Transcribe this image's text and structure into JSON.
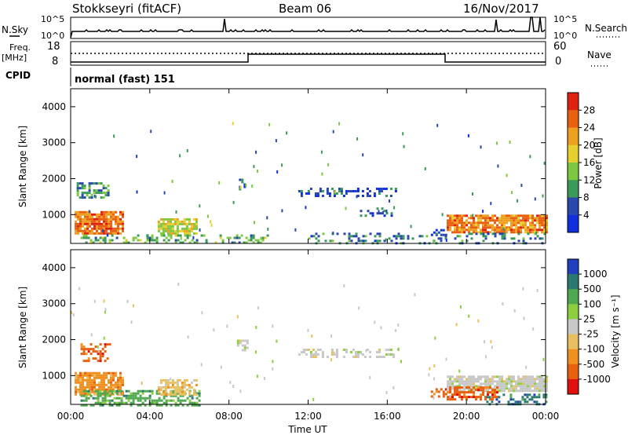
{
  "header": {
    "station": "Stokkseyri (fitACF)",
    "beam": "Beam 06",
    "date": "16/Nov/2017"
  },
  "noise_panel": {
    "left_label": "N.Sky",
    "right_label": "N.Search",
    "tick_top_left": "10^5",
    "tick_bottom_left": "10^0",
    "tick_top_right": "10^5",
    "tick_bottom_right": "10^0"
  },
  "freq_panel": {
    "left_label_1": "Freq.",
    "left_label_2": "[MHz]",
    "right_label": "Nave",
    "tick_top_left": "18",
    "tick_bottom_left": "8",
    "tick_top_right": "60",
    "tick_bottom_right": "0"
  },
  "cpid_panel": {
    "label": "CPID",
    "mode_text": "normal (fast) 151"
  },
  "colors": {
    "power_scale": [
      "#1030e0",
      "#2848b0",
      "#3a9a5a",
      "#7cc840",
      "#e6d030",
      "#f0a020",
      "#e86010",
      "#e02010"
    ],
    "velocity_scale": [
      "#e01010",
      "#e86010",
      "#f09020",
      "#e8c060",
      "#c8c8c8",
      "#8cd040",
      "#50a850",
      "#2a7a70",
      "#2040c0"
    ]
  },
  "chart_data": [
    {
      "type": "heatmap",
      "name": "power",
      "xlabel": "",
      "ylabel": "Slant Range [km]",
      "yticks": [
        "1000",
        "2000",
        "3000",
        "4000"
      ],
      "ylim": [
        200,
        4500
      ],
      "xlim_hours": [
        0,
        24
      ],
      "colorbar": {
        "label": "Power [dB]",
        "ticks": [
          "4",
          "8",
          "12",
          "16",
          "20",
          "24",
          "28"
        ],
        "range": [
          0,
          32
        ]
      },
      "blobs": [
        {
          "t0": 0.2,
          "t1": 2.6,
          "r0": 450,
          "r1": 1100,
          "level": 25,
          "density": 0.85
        },
        {
          "t0": 0.3,
          "t1": 1.9,
          "r0": 1450,
          "r1": 1900,
          "level": 10,
          "density": 0.45
        },
        {
          "t0": 4.4,
          "t1": 6.4,
          "r0": 500,
          "r1": 900,
          "level": 18,
          "density": 0.7
        },
        {
          "t0": 0.5,
          "t1": 10.0,
          "r0": 200,
          "r1": 450,
          "level": 12,
          "density": 0.35
        },
        {
          "t0": 8.5,
          "t1": 8.8,
          "r0": 1700,
          "r1": 2000,
          "level": 6,
          "density": 0.5
        },
        {
          "t0": 11.5,
          "t1": 16.5,
          "r0": 1550,
          "r1": 1750,
          "level": 5,
          "density": 0.35
        },
        {
          "t0": 14.5,
          "t1": 16.2,
          "r0": 1000,
          "r1": 1200,
          "level": 6,
          "density": 0.3
        },
        {
          "t0": 18.2,
          "t1": 19.0,
          "r0": 450,
          "r1": 600,
          "level": 3,
          "density": 0.5
        },
        {
          "t0": 19.0,
          "t1": 24.0,
          "r0": 500,
          "r1": 1000,
          "level": 24,
          "density": 0.85
        },
        {
          "t0": 12.0,
          "t1": 24.0,
          "r0": 200,
          "r1": 500,
          "level": 8,
          "density": 0.25
        }
      ]
    },
    {
      "type": "heatmap",
      "name": "velocity",
      "xlabel": "Time UT",
      "ylabel": "Slant Range [km]",
      "yticks": [
        "1000",
        "2000",
        "3000",
        "4000"
      ],
      "ylim": [
        200,
        4500
      ],
      "xticks": [
        "00:00",
        "04:00",
        "08:00",
        "12:00",
        "16:00",
        "20:00",
        "00:00"
      ],
      "colorbar": {
        "label": "Velocity [m s⁻¹]",
        "ticks": [
          "1000",
          "500",
          "100",
          "25",
          "-25",
          "-100",
          "-500",
          "-1000"
        ]
      },
      "blobs": [
        {
          "t0": 0.2,
          "t1": 2.6,
          "r0": 450,
          "r1": 1100,
          "vclass": 2,
          "density": 0.8
        },
        {
          "t0": 0.5,
          "t1": 2.0,
          "r0": 1400,
          "r1": 1900,
          "vclass": 1,
          "density": 0.4
        },
        {
          "t0": 0.5,
          "t1": 6.5,
          "r0": 200,
          "r1": 600,
          "vclass": 6,
          "density": 0.55
        },
        {
          "t0": 4.4,
          "t1": 6.4,
          "r0": 500,
          "r1": 900,
          "vclass": 3,
          "density": 0.65
        },
        {
          "t0": 8.4,
          "t1": 8.9,
          "r0": 1700,
          "r1": 2000,
          "vclass": 4,
          "density": 0.5
        },
        {
          "t0": 11.5,
          "t1": 16.5,
          "r0": 1550,
          "r1": 1750,
          "vclass": 4,
          "density": 0.35
        },
        {
          "t0": 18.2,
          "t1": 19.0,
          "r0": 450,
          "r1": 650,
          "vclass": 1,
          "density": 0.5
        },
        {
          "t0": 19.0,
          "t1": 24.0,
          "r0": 600,
          "r1": 1000,
          "vclass": 4,
          "density": 0.85
        },
        {
          "t0": 19.0,
          "t1": 21.5,
          "r0": 350,
          "r1": 700,
          "vclass": 1,
          "density": 0.6
        },
        {
          "t0": 21.0,
          "t1": 24.0,
          "r0": 200,
          "r1": 500,
          "vclass": 7,
          "density": 0.35
        }
      ]
    }
  ]
}
